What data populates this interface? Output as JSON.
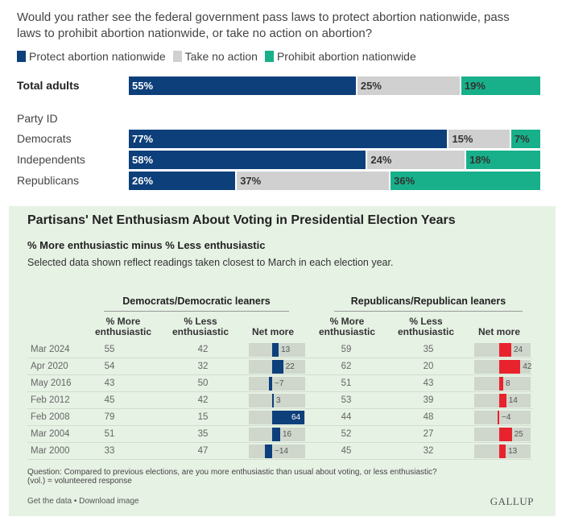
{
  "chart_data": [
    {
      "type": "bar",
      "stacked": true,
      "orientation": "horizontal",
      "title": "Would you rather see the federal government pass laws to protect abortion nationwide, pass laws to prohibit abortion nationwide, or take no action on abortion?",
      "legend_placement": "top-left",
      "series": [
        {
          "name": "Protect abortion nationwide",
          "color": "#0d3f7a"
        },
        {
          "name": "Take no action",
          "color": "#d0d0d0"
        },
        {
          "name": "Prohibit abortion nationwide",
          "color": "#17b08a"
        }
      ],
      "rows": [
        {
          "label": "Total adults",
          "bold": true,
          "values": [
            55,
            25,
            19
          ]
        },
        {
          "label": "Democrats",
          "values": [
            77,
            15,
            7
          ]
        },
        {
          "label": "Independents",
          "values": [
            58,
            24,
            18
          ]
        },
        {
          "label": "Republicans",
          "values": [
            26,
            37,
            36
          ]
        }
      ],
      "group_label": "Party ID",
      "value_suffix": "%"
    },
    {
      "type": "table",
      "title": "Partisans' Net Enthusiasm About Voting in Presidential Election Years",
      "subtitle": "% More enthusiastic minus % Less enthusiastic",
      "note": "Selected data shown reflect readings taken closest to March in each election year.",
      "groups": [
        {
          "name": "Democrats/Democratic leaners",
          "color": "#0d3f7a"
        },
        {
          "name": "Republicans/Republican leaners",
          "color": "#e8232e"
        }
      ],
      "columns": [
        "% More enthusiastic",
        "% Less enthusiastic",
        "Net more"
      ],
      "net_range": [
        -64,
        64
      ],
      "rows": [
        {
          "date": "Mar 2024",
          "dem": [
            55,
            42,
            13
          ],
          "rep": [
            59,
            35,
            24
          ]
        },
        {
          "date": "Apr 2020",
          "dem": [
            54,
            32,
            22
          ],
          "rep": [
            62,
            20,
            42
          ]
        },
        {
          "date": "May 2016",
          "dem": [
            43,
            50,
            -7
          ],
          "rep": [
            51,
            43,
            8
          ]
        },
        {
          "date": "Feb 2012",
          "dem": [
            45,
            42,
            3
          ],
          "rep": [
            53,
            39,
            14
          ]
        },
        {
          "date": "Feb 2008",
          "dem": [
            79,
            15,
            64
          ],
          "rep": [
            44,
            48,
            -4
          ]
        },
        {
          "date": "Mar 2004",
          "dem": [
            51,
            35,
            16
          ],
          "rep": [
            52,
            27,
            25
          ]
        },
        {
          "date": "Mar 2000",
          "dem": [
            33,
            47,
            -14
          ],
          "rep": [
            45,
            32,
            13
          ]
        }
      ]
    }
  ],
  "panel": {
    "title": "Partisans' Net Enthusiasm About Voting in Presidential Election Years",
    "subtitle": "% More enthusiastic minus % Less enthusiastic",
    "note": "Selected data shown reflect readings taken closest to March in each election year.",
    "dem_header": "Democrats/Democratic leaners",
    "rep_header": "Republicans/Republican leaners",
    "col_more_1": "% More",
    "col_more_2": "enthusiastic",
    "col_less_1": "% Less",
    "col_less_2": "enthusiastic",
    "col_net": "Net more",
    "footer_question": "Question: Compared to previous elections, are you more enthusiastic than usual about voting, or less enthusiastic?",
    "footer_vol": "(vol.) = volunteered response",
    "footer_links": "Get the data • Download image",
    "brand": "GALLUP"
  },
  "top": {
    "question": "Would you rather see the federal government pass laws to protect abortion nationwide, pass laws to prohibit abortion nationwide, or take no action on abortion?",
    "group_label": "Party ID"
  }
}
